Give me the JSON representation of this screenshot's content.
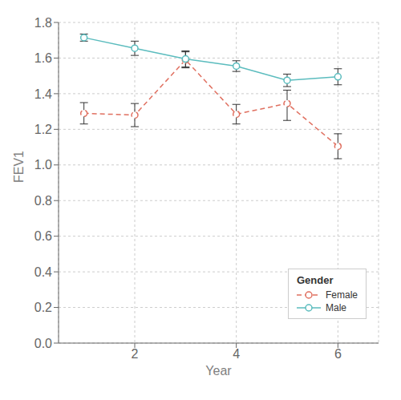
{
  "chart_data": {
    "type": "line",
    "x": [
      1,
      2,
      3,
      4,
      5,
      6
    ],
    "xlabel": "Year",
    "ylabel": "FEV1",
    "series": [
      {
        "name": "Female",
        "color": "#E07060",
        "line_style": "dashed",
        "marker": "circle",
        "values": [
          1.29,
          1.28,
          1.59,
          1.285,
          1.345,
          1.105
        ],
        "yerr_low": [
          0.06,
          0.065,
          0.045,
          0.055,
          0.095,
          0.07
        ],
        "yerr_high": [
          0.06,
          0.065,
          0.045,
          0.055,
          0.075,
          0.07
        ]
      },
      {
        "name": "Male",
        "color": "#5BBCBE",
        "line_style": "solid",
        "marker": "circle",
        "values": [
          1.715,
          1.655,
          1.595,
          1.555,
          1.475,
          1.495
        ],
        "yerr_low": [
          0.02,
          0.04,
          0.045,
          0.03,
          0.035,
          0.045
        ],
        "yerr_high": [
          0.02,
          0.04,
          0.045,
          0.03,
          0.035,
          0.045
        ]
      }
    ],
    "xlim": [
      0.5,
      6.8
    ],
    "xticks": [
      2,
      4,
      6
    ],
    "ylim": [
      0.0,
      1.8
    ],
    "yticks": [
      {
        "value": 0,
        "label": "0.0"
      },
      0.2,
      0.4,
      0.6,
      0.8,
      {
        "value": 1,
        "label": "1.0"
      },
      1.2,
      1.4,
      1.6,
      1.8
    ],
    "grid": true,
    "legend": "lower right",
    "legend_title": "Gender"
  }
}
